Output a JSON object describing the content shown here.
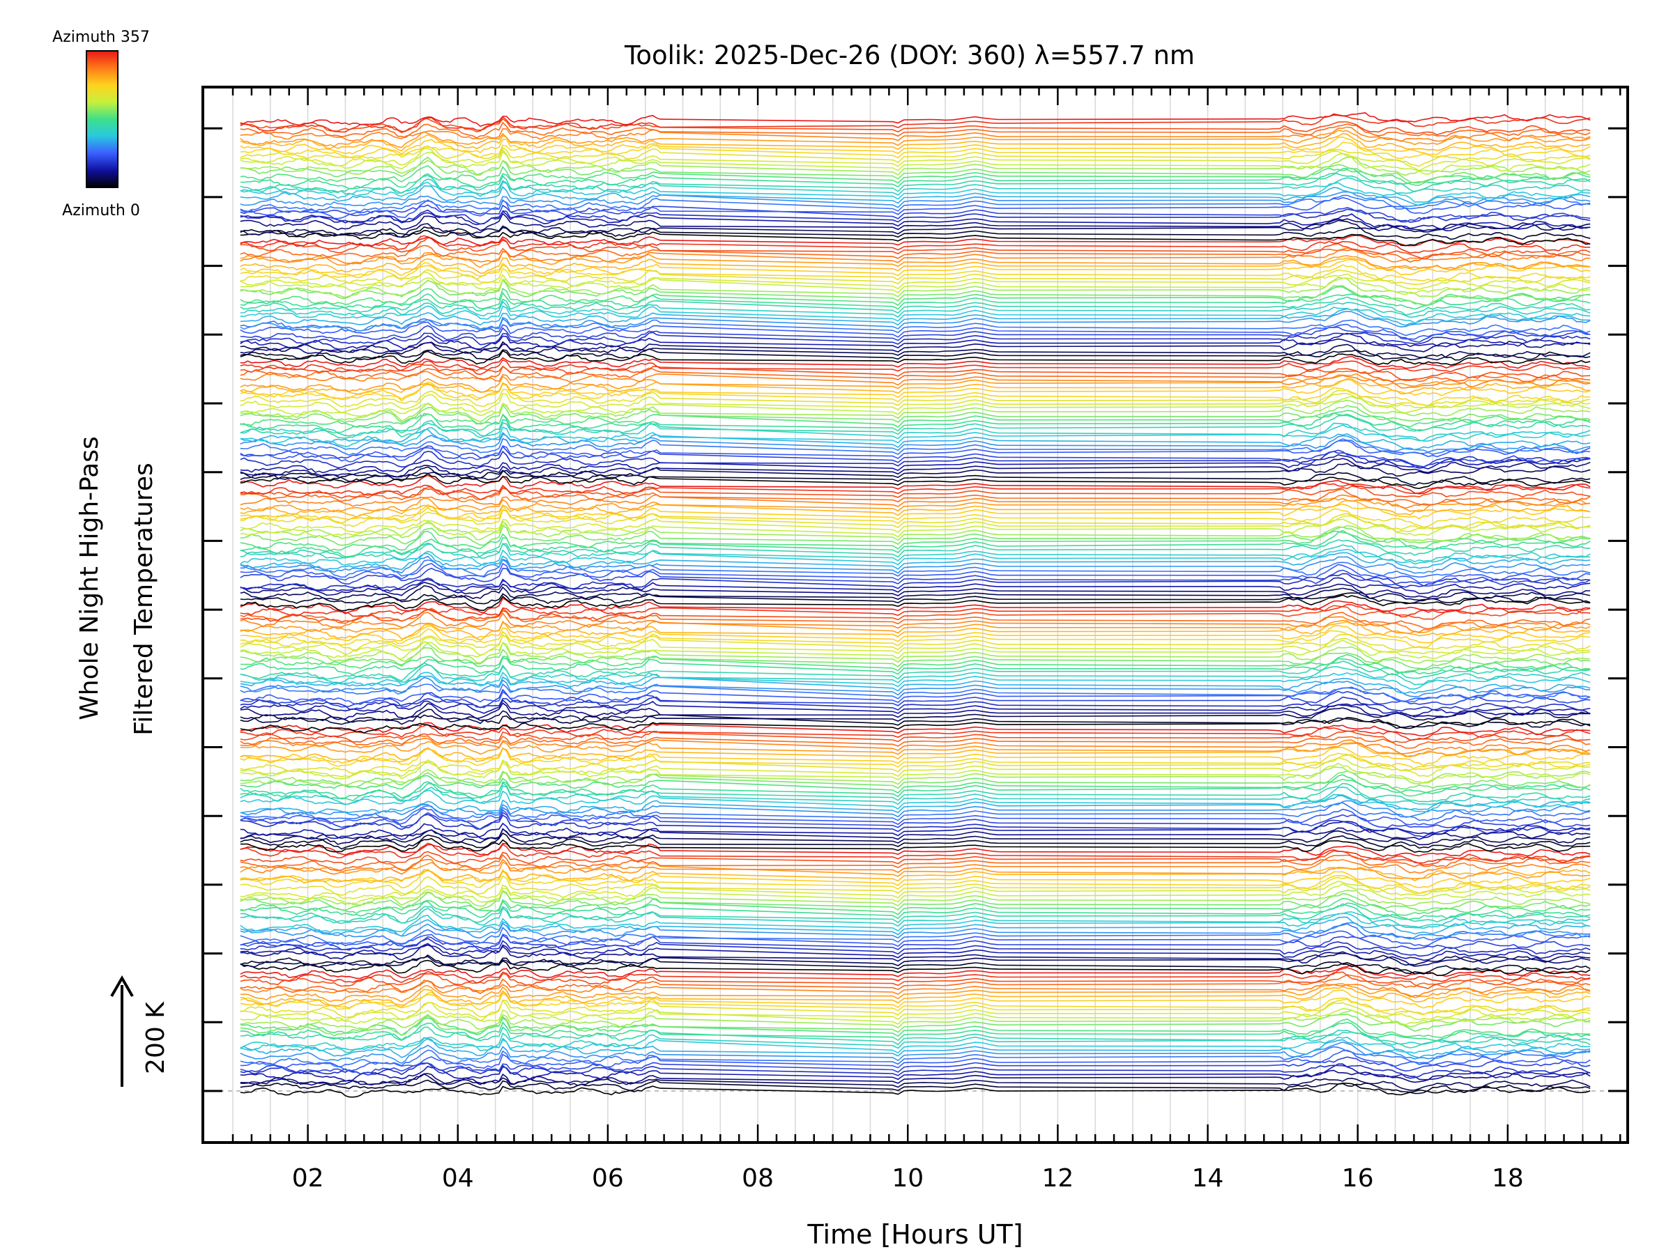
{
  "chart_data": {
    "type": "line",
    "title": "Toolik: 2025-Dec-26 (DOY: 360) λ=557.7 nm",
    "xlabel": "Time [Hours UT]",
    "ylabel_line1": "Whole Night High-Pass",
    "ylabel_line2": "Filtered Temperatures",
    "scale_label": "200 K",
    "xlim": [
      0.6,
      19.6
    ],
    "x_ticks": [
      2,
      4,
      6,
      8,
      10,
      12,
      14,
      16,
      18
    ],
    "x_tick_labels": [
      "02",
      "04",
      "06",
      "08",
      "10",
      "12",
      "14",
      "16",
      "18"
    ],
    "data_range_hours": [
      1.1,
      19.1
    ],
    "colorbar": {
      "top_label": "Azimuth 357",
      "bottom_label": "Azimuth 0",
      "colors": [
        "#000000",
        "#1010a0",
        "#3a5fff",
        "#29c8e0",
        "#3ee08a",
        "#c8f03c",
        "#ffd21e",
        "#ff7a18",
        "#e81818"
      ]
    },
    "stack": {
      "groups": 8,
      "traces_per_group": 30,
      "trace_offset_K": 1.08,
      "scale_K": 200,
      "description": "Stacked high-pass filtered temperature traces, colored by azimuth (0 to 357 deg); each trace offset vertically"
    },
    "features": [
      {
        "x": 3.6,
        "amp": 7,
        "width": 0.13
      },
      {
        "x": 3.25,
        "amp": -3,
        "width": 0.08
      },
      {
        "x": 4.62,
        "amp": 9,
        "width": 0.04
      },
      {
        "x": 4.3,
        "amp": -3,
        "width": 0.1
      },
      {
        "x": 6.6,
        "amp": 4,
        "width": 0.12
      },
      {
        "x": 9.85,
        "amp": -5,
        "width": 0.06
      },
      {
        "x": 10.9,
        "amp": 3,
        "width": 0.18
      },
      {
        "x": 15.8,
        "amp": 7,
        "width": 0.25
      },
      {
        "x": 16.8,
        "amp": -4,
        "width": 0.3
      },
      {
        "x": 2.5,
        "amp": -3,
        "width": 0.25
      }
    ]
  }
}
